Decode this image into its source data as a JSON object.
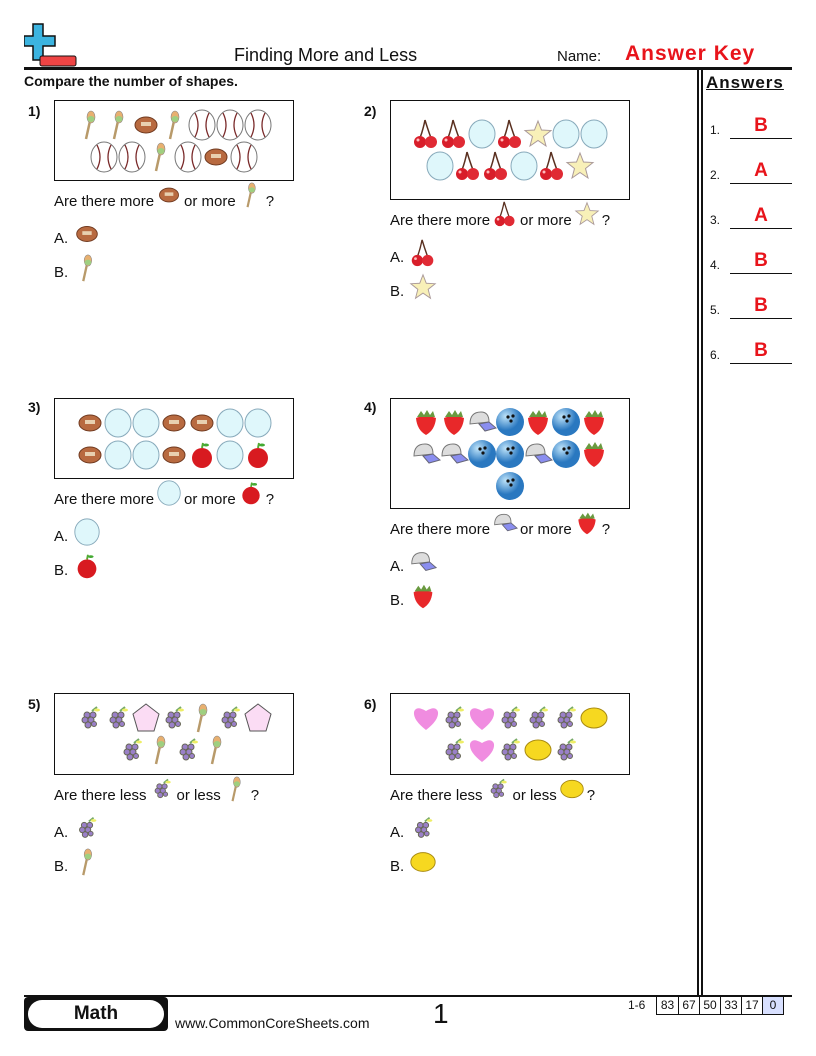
{
  "header": {
    "title": "Finding More and Less",
    "name_label": "Name:",
    "name_value": "Answer Key",
    "instructions": "Compare the number of shapes."
  },
  "answers": {
    "heading": "Answers",
    "items": [
      {
        "n": "1.",
        "v": "B"
      },
      {
        "n": "2.",
        "v": "A"
      },
      {
        "n": "3.",
        "v": "A"
      },
      {
        "n": "4.",
        "v": "B"
      },
      {
        "n": "5.",
        "v": "B"
      },
      {
        "n": "6.",
        "v": "B"
      }
    ]
  },
  "problems": [
    {
      "num": "1)",
      "rows": [
        [
          "maraca",
          "maraca",
          "football",
          "maraca",
          "baseball",
          "baseball",
          "baseball"
        ],
        [
          "baseball",
          "baseball",
          "maraca",
          "baseball",
          "football",
          "baseball"
        ]
      ],
      "q_pre": "Are there more",
      "q_mid": "or more",
      "q_end": "?",
      "a": "football",
      "b": "maraca",
      "la": "A.",
      "lb": "B."
    },
    {
      "num": "2)",
      "rows": [
        [
          "cherry",
          "cherry",
          "circle",
          "cherry",
          "star",
          "circle",
          "circle"
        ],
        [
          "circle",
          "cherry",
          "cherry",
          "circle",
          "cherry",
          "star"
        ]
      ],
      "q_pre": "Are there more",
      "q_mid": "or more",
      "q_end": "?",
      "a": "cherry",
      "b": "star",
      "la": "A.",
      "lb": "B."
    },
    {
      "num": "3)",
      "rows": [
        [
          "football",
          "circle",
          "circle",
          "football",
          "football",
          "circle",
          "circle"
        ],
        [
          "football",
          "circle",
          "circle",
          "football",
          "apple",
          "circle",
          "apple"
        ]
      ],
      "q_pre": "Are there more",
      "q_mid": "or more",
      "q_end": "?",
      "a": "circle",
      "b": "apple",
      "la": "A.",
      "lb": "B."
    },
    {
      "num": "4)",
      "rows": [
        [
          "strawberry",
          "strawberry",
          "cap",
          "bowling",
          "strawberry",
          "bowling",
          "strawberry"
        ],
        [
          "cap",
          "cap",
          "bowling",
          "bowling",
          "cap",
          "bowling",
          "strawberry"
        ],
        [
          "bowling"
        ]
      ],
      "q_pre": "Are there more",
      "q_mid": "or more",
      "q_end": "?",
      "a": "cap",
      "b": "strawberry",
      "la": "A.",
      "lb": "B."
    },
    {
      "num": "5)",
      "rows": [
        [
          "grapes",
          "grapes",
          "pentagon",
          "grapes",
          "maraca",
          "grapes",
          "pentagon"
        ],
        [
          "grapes",
          "maraca",
          "grapes",
          "maraca"
        ]
      ],
      "q_pre": "Are there less",
      "q_mid": "or less",
      "q_end": "?",
      "a": "grapes",
      "b": "maraca",
      "la": "A.",
      "lb": "B."
    },
    {
      "num": "6)",
      "rows": [
        [
          "heart",
          "grapes",
          "heart",
          "grapes",
          "grapes",
          "grapes",
          "lemon"
        ],
        [
          "grapes",
          "heart",
          "grapes",
          "lemon",
          "grapes"
        ]
      ],
      "q_pre": "Are there less",
      "q_mid": "or less",
      "q_end": "?",
      "a": "grapes",
      "b": "lemon",
      "la": "A.",
      "lb": "B."
    }
  ],
  "footer": {
    "subject": "Math",
    "url": "www.CommonCoreSheets.com",
    "page": "1",
    "score_label": "1-6",
    "scores": [
      "83",
      "67",
      "50",
      "33",
      "17",
      "0"
    ]
  },
  "colors": {
    "answer": "#e8141b",
    "logo_blue": "#3cb4e0",
    "logo_red": "#ee4444"
  }
}
